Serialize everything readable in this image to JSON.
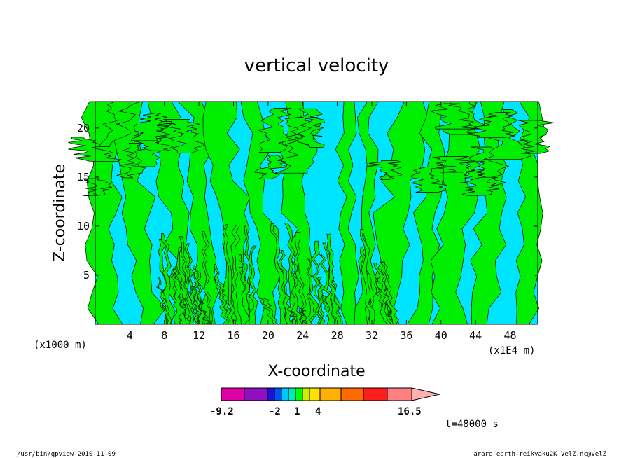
{
  "chart_data": {
    "type": "heatmap",
    "title": "vertical velocity",
    "xlabel": "X-coordinate",
    "ylabel": "Z-coordinate",
    "x_unit_left": "(x1000 m)",
    "x_unit_right": "(x1E4 m)",
    "xlim": [
      0,
      51.2
    ],
    "ylim": [
      0,
      22.7
    ],
    "x_ticks": [
      4,
      8,
      12,
      16,
      20,
      24,
      28,
      32,
      36,
      40,
      44,
      48
    ],
    "y_ticks": [
      5,
      10,
      15,
      20
    ],
    "colorbar": {
      "min_label": "-9.2",
      "max_label": "16.5",
      "tick_labels": [
        "-2",
        "1",
        "4"
      ],
      "bins": [
        {
          "color": "#e000a8"
        },
        {
          "color": "#9010c0"
        },
        {
          "color": "#2010d0"
        },
        {
          "color": "#0050ff"
        },
        {
          "color": "#00c8ff"
        },
        {
          "color": "#00e8c0"
        },
        {
          "color": "#00ff00"
        },
        {
          "color": "#c8f000"
        },
        {
          "color": "#ffe000"
        },
        {
          "color": "#ffb000"
        },
        {
          "color": "#ff6a00"
        },
        {
          "color": "#ff1e1e"
        },
        {
          "color": "#ff8080"
        },
        {
          "color": "#ffb0b0"
        }
      ]
    },
    "field_colors": {
      "negative": "#00e5ff",
      "positive": "#00ee00",
      "contour": "#000000"
    },
    "time_label": "t=48000 s"
  },
  "footer": {
    "left": "/usr/bin/gpview  2010-11-09",
    "right": "arare-earth-reikyaku2K_VelZ.nc@VelZ"
  }
}
